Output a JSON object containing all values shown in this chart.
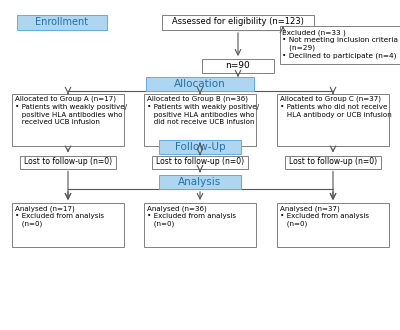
{
  "bg_color": "#ffffff",
  "blue_fill": "#aed6f1",
  "blue_edge": "#5dade2",
  "box_fill": "#ffffff",
  "box_edge": "#808080",
  "text_color": "#000000",
  "blue_text": "#2471a3",
  "enrollment_label": "Enrollment",
  "eligibility_text": "Assessed for eligibility (n=123)",
  "excluded_text": "Excluded (n=33 )\n• Not meeting inclusion criteria\n   (n=29)\n• Declined to participate (n=4)",
  "n90_text": "n=90",
  "allocation_label": "Allocation",
  "groupA_text": "Allocated to Group A (n=17)\n• Patients with weakly positive/\n   positive HLA antibodies who\n   received UCB infusion",
  "groupB_text": "Allocated to Group B (n=36)\n• Patients with weakly positive/\n   positive HLA antibodies who\n   did not receive UCB infusion",
  "groupC_text": "Allocated to Group C (n=37)\n• Patients who did not receive\n   HLA antibody or UCB infusion",
  "followup_label": "Follow-Up",
  "lostA_text": "Lost to follow-up (n=0)",
  "lostB_text": "Lost to follow-up (n=0)",
  "lostC_text": "Lost to follow-up (n=0)",
  "analysis_label": "Analysis",
  "analysedA_text": "Analysed (n=17)\n• Excluded from analysis\n   (n=0)",
  "analysedB_text": "Analysed (n=36)\n• Excluded from analysis\n   (n=0)",
  "analysedC_text": "Analysed (n=37)\n• Excluded from analysis\n   (n=0)"
}
